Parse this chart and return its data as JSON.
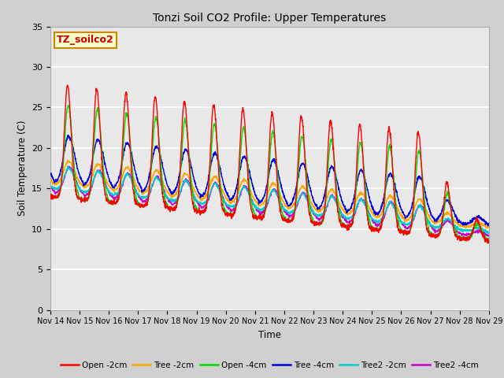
{
  "title": "Tonzi Soil CO2 Profile: Upper Temperatures",
  "ylabel": "Soil Temperature (C)",
  "xlabel": "Time",
  "annotation": "TZ_soilco2",
  "ylim": [
    0,
    35
  ],
  "yticks": [
    0,
    5,
    10,
    15,
    20,
    25,
    30,
    35
  ],
  "xtick_labels": [
    "Nov 14",
    "Nov 15",
    "Nov 16",
    "Nov 17",
    "Nov 18",
    "Nov 19",
    "Nov 20",
    "Nov 21",
    "Nov 22",
    "Nov 23",
    "Nov 24",
    "Nov 25",
    "Nov 26",
    "Nov 27",
    "Nov 28",
    "Nov 29"
  ],
  "fig_bg": "#d0d0d0",
  "plot_bg": "#e8e8e8",
  "grid_color": "#ffffff",
  "series": {
    "open_2cm": {
      "label": "Open -2cm",
      "color": "#ff0000",
      "lw": 1.0
    },
    "tree_2cm": {
      "label": "Tree -2cm",
      "color": "#ffa500",
      "lw": 1.0
    },
    "open_4cm": {
      "label": "Open -4cm",
      "color": "#00dd00",
      "lw": 1.0
    },
    "tree_4cm": {
      "label": "Tree -4cm",
      "color": "#0000dd",
      "lw": 1.0
    },
    "tree2_2cm": {
      "label": "Tree2 -2cm",
      "color": "#00cccc",
      "lw": 1.0
    },
    "tree2_4cm": {
      "label": "Tree2 -4cm",
      "color": "#cc00cc",
      "lw": 1.0
    }
  },
  "annotation_box": {
    "facecolor": "#ffffcc",
    "edgecolor": "#cc8800",
    "fontcolor": "#cc0000",
    "fontsize": 9,
    "fontweight": "bold"
  }
}
